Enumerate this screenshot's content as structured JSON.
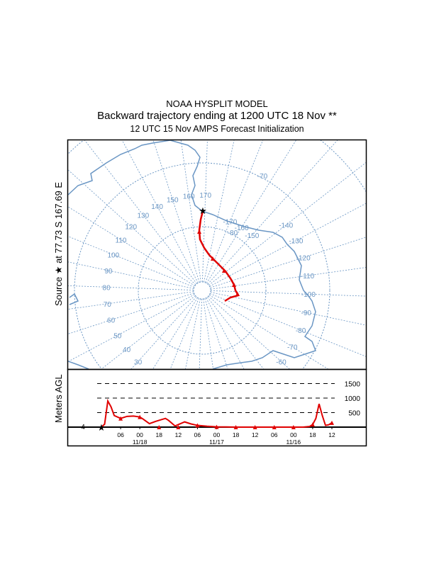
{
  "title": {
    "line1": "NOAA HYSPLIT MODEL",
    "line2": "Backward trajectory ending at 1200 UTC 18 Nov **",
    "line3": "12 UTC 15 Nov    AMPS  Forecast Initialization"
  },
  "map": {
    "source_label": "Source ★ at  77.73 S  167.69 E",
    "longitude_labels_west": [
      "170",
      "160",
      "150",
      "140",
      "130",
      "120",
      "110",
      "100",
      "90",
      "80",
      "70",
      "60",
      "50",
      "40",
      "30"
    ],
    "longitude_labels_east": [
      "-170",
      "-160",
      "-150",
      "-140",
      "-130",
      "-120",
      "-110",
      "-100",
      "-90",
      "-80",
      "-70",
      "-60",
      "-50"
    ],
    "latitude_labels": [
      "-70",
      "-80"
    ],
    "colors": {
      "grid": "#6a96c4",
      "coast": "#6a96c4",
      "trajectory": "#e00000"
    }
  },
  "chart_data": {
    "type": "line",
    "title": "",
    "ylabel": "Meters AGL",
    "xlabel": "",
    "start_height_label": "4",
    "ylim": [
      0,
      1700
    ],
    "y_gridlines": [
      500,
      1000,
      1500
    ],
    "y_tick_labels": [
      "500",
      "1000",
      "1500"
    ],
    "x_tick_labels": [
      "06",
      "00",
      "18",
      "12",
      "06",
      "00",
      "18",
      "12",
      "06",
      "00",
      "18",
      "12"
    ],
    "x_date_labels": [
      "11/18",
      "11/17",
      "11/16"
    ],
    "hours_back": [
      0,
      1,
      2,
      3,
      4,
      6,
      8,
      10,
      12,
      13,
      15,
      17,
      20,
      21,
      23,
      26,
      28,
      30,
      33,
      36,
      39,
      42,
      45,
      48,
      51,
      54,
      57,
      60,
      63,
      65,
      66,
      67,
      68,
      69,
      70,
      71,
      72
    ],
    "height_m": [
      4,
      100,
      900,
      700,
      400,
      300,
      370,
      380,
      350,
      280,
      120,
      200,
      300,
      230,
      40,
      180,
      110,
      60,
      30,
      10,
      5,
      0,
      0,
      0,
      0,
      0,
      0,
      0,
      0,
      20,
      90,
      300,
      800,
      400,
      60,
      80,
      150
    ],
    "series": [
      {
        "name": "Trajectory height",
        "color": "#e00000"
      }
    ]
  }
}
